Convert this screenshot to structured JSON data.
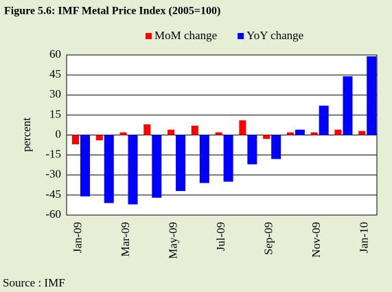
{
  "chart_data": {
    "type": "bar",
    "title": "Figure 5.6: IMF Metal Price Index (2005=100)",
    "y_label": "percent",
    "source": "Source : IMF",
    "categories": [
      "Jan-09",
      null,
      "Mar-09",
      null,
      "May-09",
      null,
      "Jul-09",
      null,
      "Sep-09",
      null,
      "Nov-09",
      null,
      "Jan-10"
    ],
    "series": [
      {
        "name": "MoM change",
        "color": "#ff0000",
        "values": [
          -7,
          -4,
          2,
          8,
          4,
          7,
          2,
          11,
          -3,
          2,
          2,
          4,
          3
        ]
      },
      {
        "name": "YoY change",
        "color": "#0000ff",
        "values": [
          -46,
          -51,
          -52,
          -47,
          -42,
          -36,
          -35,
          -22,
          -18,
          4,
          22,
          44,
          59
        ]
      }
    ],
    "ylim": [
      -60,
      60
    ],
    "yticks": [
      -60,
      -45,
      -30,
      -15,
      0,
      15,
      30,
      45,
      60
    ],
    "grid": true,
    "legend": "top"
  }
}
